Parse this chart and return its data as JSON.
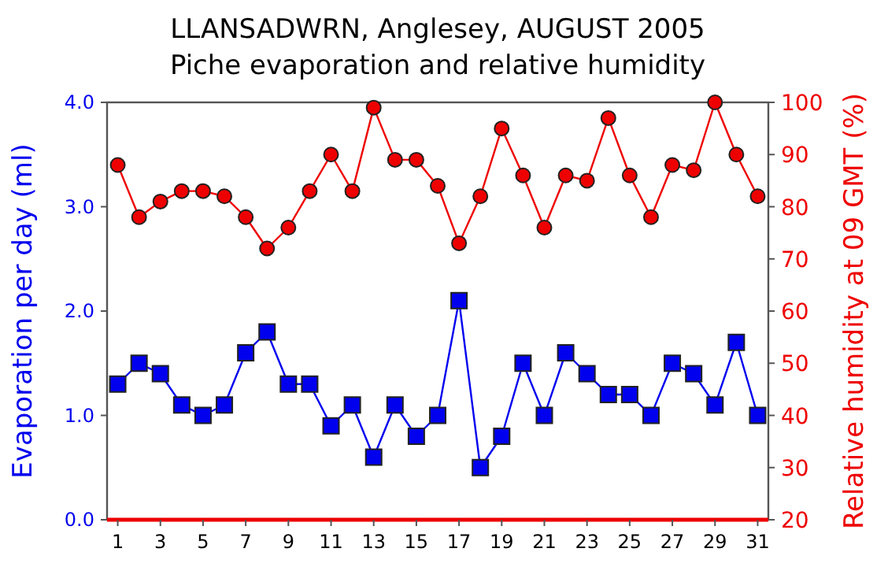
{
  "chart_data": {
    "type": "line",
    "title": "LLANSADWRN, Anglesey, AUGUST 2005",
    "subtitle": "Piche evaporation and relative humidity",
    "ylabel": "Evaporation per day (ml)",
    "y2label": "Relative humidity at 09 GMT (%)",
    "x": [
      1,
      2,
      3,
      4,
      5,
      6,
      7,
      8,
      9,
      10,
      11,
      12,
      13,
      14,
      15,
      16,
      17,
      18,
      19,
      20,
      21,
      22,
      23,
      24,
      25,
      26,
      27,
      28,
      29,
      30,
      31
    ],
    "xlim": [
      0.5,
      31.5
    ],
    "xticks": [
      1,
      3,
      5,
      7,
      9,
      11,
      13,
      15,
      17,
      19,
      21,
      23,
      25,
      27,
      29,
      31
    ],
    "ylim": [
      0,
      4
    ],
    "yticks": [
      {
        "value": 0,
        "label": "0.0"
      },
      {
        "value": 1,
        "label": "1.0"
      },
      {
        "value": 2,
        "label": "2.0"
      },
      {
        "value": 3,
        "label": "3.0"
      },
      {
        "value": 4,
        "label": "4.0"
      }
    ],
    "y2lim": [
      20,
      100
    ],
    "y2ticks": [
      20,
      30,
      40,
      50,
      60,
      70,
      80,
      90,
      100
    ],
    "grid": false,
    "series": [
      {
        "color": "#0000ee",
        "marker": "square",
        "values": [
          1.3,
          1.5,
          1.4,
          1.1,
          1.0,
          1.1,
          1.6,
          1.8,
          1.3,
          1.3,
          0.9,
          1.1,
          0.6,
          1.1,
          0.8,
          1.0,
          2.1,
          0.5,
          0.8,
          1.5,
          1.0,
          1.6,
          1.4,
          1.2,
          1.2,
          1.0,
          1.5,
          1.4,
          1.1,
          1.7,
          1.0
        ]
      },
      {
        "color": "#ee0000",
        "marker": "circle",
        "axis": "y2",
        "values": [
          88,
          78,
          81,
          83,
          83,
          82,
          78,
          72,
          76,
          83,
          90,
          83,
          99,
          89,
          89,
          84,
          73,
          82,
          95,
          86,
          76,
          86,
          85,
          97,
          86,
          78,
          88,
          87,
          100,
          90,
          82
        ]
      }
    ]
  }
}
